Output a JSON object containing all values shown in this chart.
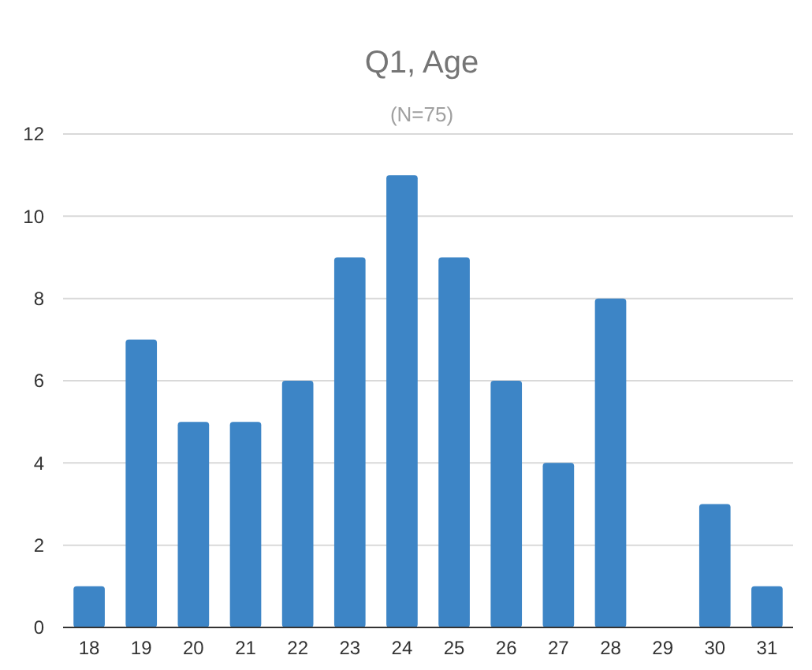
{
  "chart_data": {
    "type": "bar",
    "title": "Q1, Age",
    "subtitle": "(N=75)",
    "categories": [
      "18",
      "19",
      "20",
      "21",
      "22",
      "23",
      "24",
      "25",
      "26",
      "27",
      "28",
      "29",
      "30",
      "31"
    ],
    "values": [
      1,
      7,
      5,
      5,
      6,
      9,
      11,
      9,
      6,
      4,
      8,
      0,
      3,
      1
    ],
    "color": "#3d85c6",
    "ylim": [
      0,
      12
    ],
    "yticks": [
      0,
      2,
      4,
      6,
      8,
      10,
      12
    ],
    "grid": "y"
  }
}
